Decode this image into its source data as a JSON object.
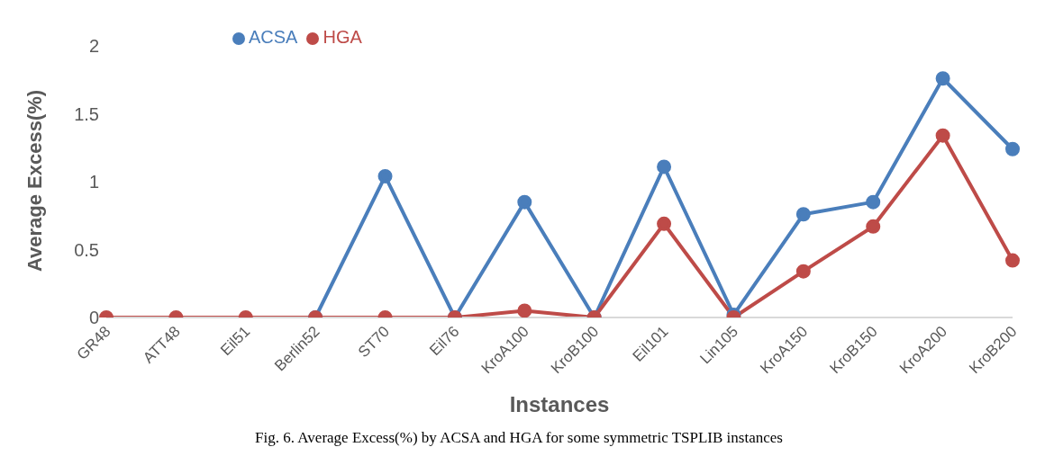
{
  "chart_data": {
    "type": "line",
    "xlabel": "Instances",
    "ylabel": "Average Excess(%)",
    "categories": [
      "GR48",
      "ATT48",
      "Eil51",
      "Berlin52",
      "ST70",
      "Eil76",
      "KroA100",
      "KroB100",
      "Eil101",
      "Lin105",
      "KroA150",
      "KroB150",
      "KroA200",
      "KroB200"
    ],
    "series": [
      {
        "name": "ACSA",
        "color": "#4a7ebb",
        "values": [
          null,
          null,
          null,
          0,
          1.04,
          0,
          0.85,
          0,
          1.11,
          0.02,
          0.76,
          0.85,
          1.76,
          1.24
        ]
      },
      {
        "name": "HGA",
        "color": "#be4b48",
        "values": [
          0,
          0,
          0,
          0,
          0,
          0,
          0.05,
          0,
          0.69,
          0,
          0.34,
          0.67,
          1.34,
          0.42
        ]
      }
    ],
    "ylim": [
      0,
      2
    ],
    "yticks": [
      0,
      0.5,
      1,
      1.5,
      2
    ],
    "grid": false,
    "legend": "top left",
    "marker": "circle",
    "line_style": "solid",
    "annotations": [
      "Fig. 6. Average Excess(%) by ACSA and HGA for some symmetric TSPLIB instances"
    ]
  }
}
